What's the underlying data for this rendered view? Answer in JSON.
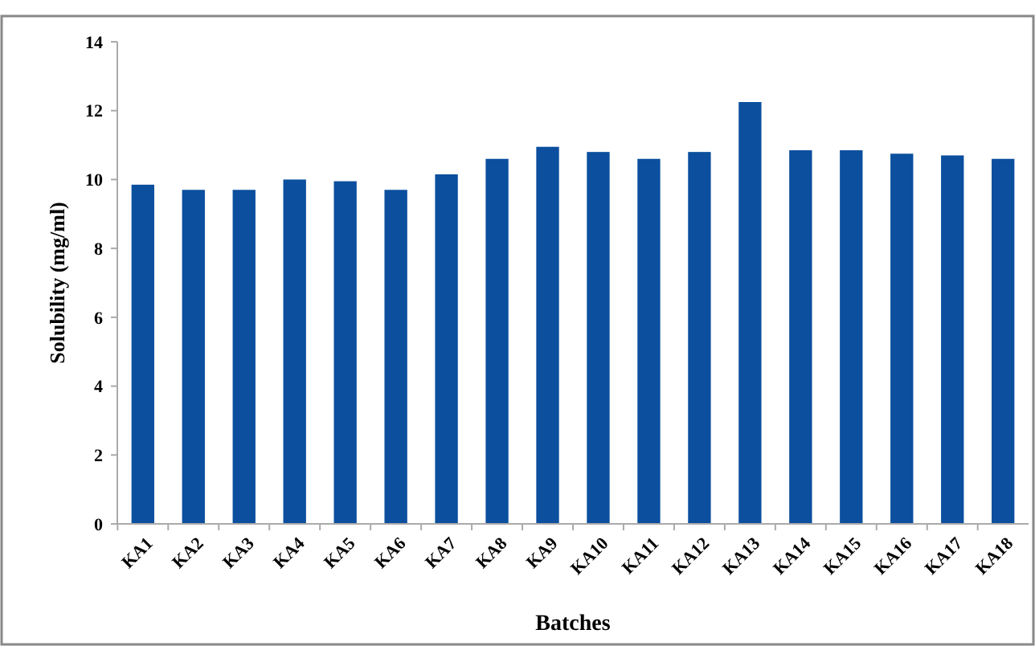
{
  "chart_data": {
    "type": "bar",
    "xlabel": "Batches",
    "ylabel": "Solubility (mg/ml)",
    "categories": [
      "KA1",
      "KA2",
      "KA3",
      "KA4",
      "KA5",
      "KA6",
      "KA7",
      "KA8",
      "KA9",
      "KA10",
      "KA11",
      "KA12",
      "KA13",
      "KA14",
      "KA15",
      "KA16",
      "KA17",
      "KA18"
    ],
    "values": [
      9.85,
      9.7,
      9.7,
      10.0,
      9.95,
      9.7,
      10.15,
      10.6,
      10.95,
      10.8,
      10.6,
      10.8,
      12.25,
      10.85,
      10.85,
      10.75,
      10.7,
      10.6
    ],
    "color": "#0b4f9e",
    "ylim": [
      0,
      14
    ],
    "yticks": [
      0,
      2,
      4,
      6,
      8,
      10,
      12,
      14
    ]
  }
}
